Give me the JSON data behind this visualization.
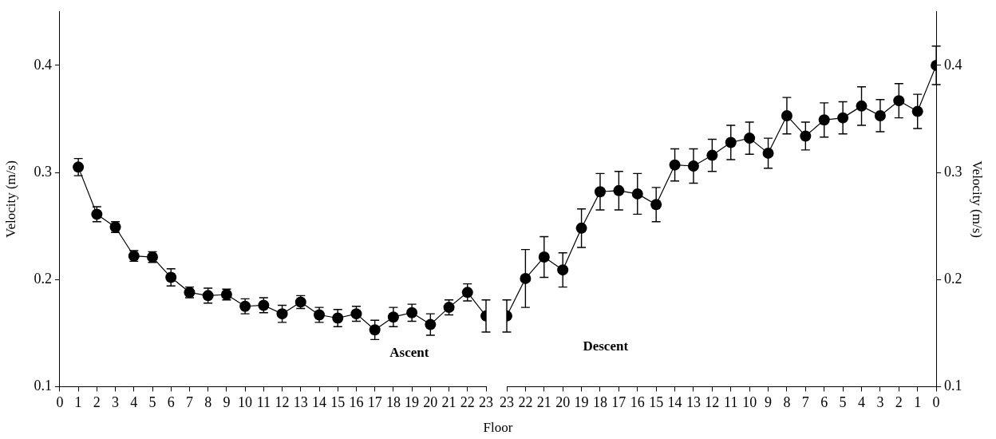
{
  "chart_data": [
    {
      "type": "line",
      "xlabel": "Floor",
      "ylabel": "Velocity (m/s)",
      "annotations": [
        "Ascent"
      ],
      "marker": "circle",
      "x": [
        1,
        2,
        3,
        4,
        5,
        6,
        7,
        8,
        9,
        10,
        11,
        12,
        13,
        14,
        15,
        16,
        17,
        18,
        19,
        20,
        21,
        22,
        23
      ],
      "xlim": [
        0,
        23
      ],
      "xticks": [
        0,
        1,
        2,
        3,
        4,
        5,
        6,
        7,
        8,
        9,
        10,
        11,
        12,
        13,
        14,
        15,
        16,
        17,
        18,
        19,
        20,
        21,
        22,
        23
      ],
      "ylim": [
        0.1,
        0.45
      ],
      "yticks": [
        0.1,
        0.2,
        0.3,
        0.4
      ],
      "series": [
        {
          "color": "#000000",
          "values": [
            0.305,
            0.261,
            0.249,
            0.222,
            0.221,
            0.202,
            0.188,
            0.185,
            0.186,
            0.175,
            0.176,
            0.168,
            0.179,
            0.167,
            0.164,
            0.168,
            0.153,
            0.165,
            0.169,
            0.158,
            0.174,
            0.188,
            0.166
          ],
          "errors": [
            0.008,
            0.007,
            0.005,
            0.005,
            0.005,
            0.008,
            0.005,
            0.007,
            0.005,
            0.007,
            0.007,
            0.008,
            0.006,
            0.007,
            0.008,
            0.007,
            0.009,
            0.009,
            0.008,
            0.01,
            0.007,
            0.008,
            0.015
          ]
        }
      ]
    },
    {
      "type": "line",
      "y2label": "Velocity (m/s)",
      "annotations": [
        "Descent"
      ],
      "marker": "circle",
      "x": [
        23,
        22,
        21,
        20,
        19,
        18,
        17,
        16,
        15,
        14,
        13,
        12,
        11,
        10,
        9,
        8,
        7,
        6,
        5,
        4,
        3,
        2,
        1,
        0
      ],
      "xlim": [
        23,
        0
      ],
      "xticks": [
        23,
        22,
        21,
        20,
        19,
        18,
        17,
        16,
        15,
        14,
        13,
        12,
        11,
        10,
        9,
        8,
        7,
        6,
        5,
        4,
        3,
        2,
        1,
        0
      ],
      "y2lim": [
        0.1,
        0.45
      ],
      "y2ticks": [
        0.1,
        0.2,
        0.3,
        0.4
      ],
      "series": [
        {
          "color": "#000000",
          "axis": "y2",
          "values": [
            0.166,
            0.201,
            0.221,
            0.209,
            0.248,
            0.282,
            0.283,
            0.28,
            0.27,
            0.307,
            0.306,
            0.316,
            0.328,
            0.332,
            0.318,
            0.353,
            0.334,
            0.349,
            0.351,
            0.362,
            0.353,
            0.367,
            0.357,
            0.4
          ],
          "errors": [
            0.015,
            0.027,
            0.019,
            0.016,
            0.018,
            0.017,
            0.018,
            0.019,
            0.016,
            0.015,
            0.016,
            0.015,
            0.016,
            0.015,
            0.014,
            0.017,
            0.013,
            0.016,
            0.015,
            0.018,
            0.015,
            0.016,
            0.016,
            0.018
          ]
        }
      ]
    }
  ]
}
